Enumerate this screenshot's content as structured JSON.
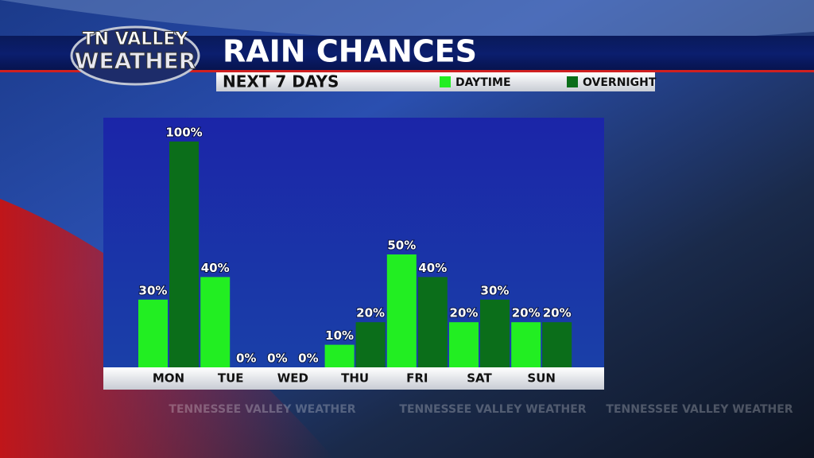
{
  "chart_data": {
    "type": "bar",
    "logo": [
      "TN VALLEY",
      "WEATHER"
    ],
    "title": "RAIN CHANCES",
    "subtitle": "NEXT 7 DAYS",
    "watermark": "TENNESSEE VALLEY WEATHER",
    "categories": [
      "MON",
      "TUE",
      "WED",
      "THU",
      "FRI",
      "SAT",
      "SUN"
    ],
    "series": [
      {
        "name": "DAYTIME",
        "color": "#22ee22",
        "values": [
          30,
          40,
          0,
          10,
          50,
          20,
          20
        ],
        "value_labels": [
          "30%",
          "40%",
          "0%",
          "10%",
          "50%",
          "20%",
          "20%"
        ]
      },
      {
        "name": "OVERNIGHT",
        "color": "#0b6e1a",
        "values": [
          100,
          0,
          0,
          20,
          40,
          30,
          20
        ],
        "value_labels": [
          "100%",
          "0%",
          "0%",
          "20%",
          "40%",
          "30%",
          "20%"
        ]
      }
    ],
    "ylim": [
      0,
      100
    ]
  }
}
